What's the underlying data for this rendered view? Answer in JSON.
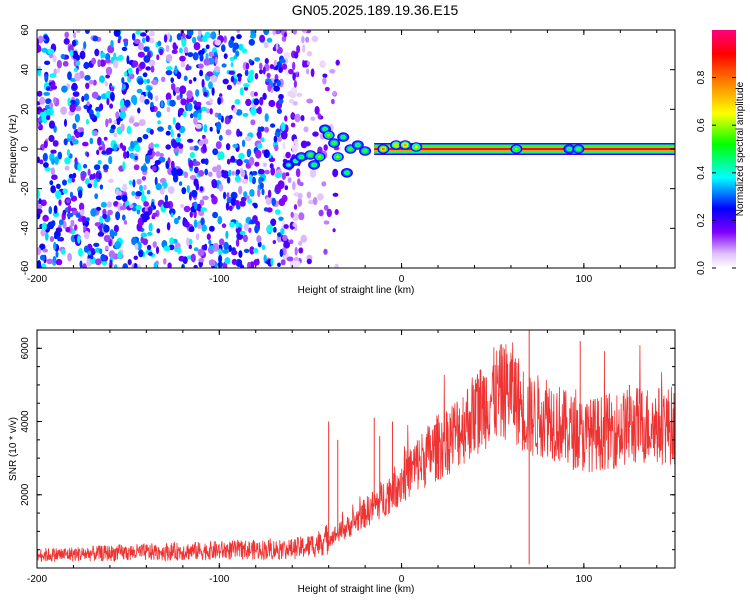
{
  "title": "GN05.2025.189.19.36.E15",
  "chart_data": [
    {
      "type": "heatmap",
      "xlabel": "Height of straight line (km)",
      "ylabel": "Frequency (Hz)",
      "xlim": [
        -200,
        150
      ],
      "ylim": [
        -60,
        60
      ],
      "xticks": [
        -200,
        -100,
        0,
        100
      ],
      "yticks": [
        -60,
        -40,
        -20,
        0,
        20,
        40,
        60
      ],
      "colorbar": {
        "label": "Normalized spectral amplitude",
        "range": [
          0.0,
          1.0
        ],
        "ticks": [
          "0.0",
          "0.2",
          "0.4",
          "0.6",
          "0.8"
        ],
        "colors": [
          "#ffffff",
          "#cc99ff",
          "#8000ff",
          "#0000ff",
          "#00ffff",
          "#00ff00",
          "#ffff00",
          "#ff8000",
          "#ff0000",
          "#ff0080"
        ]
      },
      "features": {
        "noise_region_x": [
          -200,
          -55
        ],
        "noise_amplitude": 0.35,
        "tone_x": [
          -15,
          150
        ],
        "tone_frequency": 0,
        "tone_amplitude": 0.95,
        "transition_blobs": [
          {
            "x": -62,
            "y": -8,
            "a": 0.4
          },
          {
            "x": -58,
            "y": -6,
            "a": 0.45
          },
          {
            "x": -55,
            "y": -4,
            "a": 0.5
          },
          {
            "x": -50,
            "y": -3,
            "a": 0.55
          },
          {
            "x": -48,
            "y": -8,
            "a": 0.5
          },
          {
            "x": -45,
            "y": -4,
            "a": 0.6
          },
          {
            "x": -42,
            "y": 10,
            "a": 0.5
          },
          {
            "x": -40,
            "y": 7,
            "a": 0.6
          },
          {
            "x": -37,
            "y": 3,
            "a": 0.55
          },
          {
            "x": -35,
            "y": -4,
            "a": 0.6
          },
          {
            "x": -32,
            "y": 6,
            "a": 0.5
          },
          {
            "x": -30,
            "y": -12,
            "a": 0.5
          },
          {
            "x": -28,
            "y": 0,
            "a": 0.55
          },
          {
            "x": -24,
            "y": 2,
            "a": 0.5
          },
          {
            "x": -20,
            "y": -1,
            "a": 0.55
          },
          {
            "x": -10,
            "y": 0,
            "a": 0.8
          },
          {
            "x": -3,
            "y": 2,
            "a": 0.7
          },
          {
            "x": 2,
            "y": 2,
            "a": 0.75
          },
          {
            "x": 8,
            "y": 1,
            "a": 0.65
          },
          {
            "x": 63,
            "y": 0,
            "a": 0.6
          },
          {
            "x": 92,
            "y": 0,
            "a": 0.5
          },
          {
            "x": 97,
            "y": 0,
            "a": 0.55
          }
        ]
      }
    },
    {
      "type": "line",
      "xlabel": "Height of straight line (km)",
      "ylabel": "SNR (10 * v/v)",
      "xlim": [
        -200,
        150
      ],
      "ylim": [
        0,
        6500
      ],
      "xticks": [
        -200,
        -100,
        0,
        100
      ],
      "yticks": [
        2000,
        4000,
        6000
      ],
      "series": [
        {
          "color": "#ee3333",
          "trend": {
            "x": [
              -200,
              -150,
              -100,
              -60,
              -50,
              -40,
              -30,
              -20,
              -10,
              0,
              10,
              20,
              30,
              40,
              50,
              60,
              70,
              80,
              90,
              100,
              110,
              120,
              130,
              140,
              150
            ],
            "y": [
              350,
              420,
              480,
              520,
              600,
              800,
              1100,
              1500,
              1900,
              2400,
              2900,
              3300,
              3700,
              4200,
              4700,
              4900,
              4100,
              4200,
              3800,
              3600,
              3700,
              3800,
              3900,
              3900,
              3900
            ]
          },
          "spikes": [
            {
              "x": -40,
              "y": 4000
            },
            {
              "x": -35,
              "y": 3500
            },
            {
              "x": -15,
              "y": 4100
            },
            {
              "x": -12,
              "y": 3600
            },
            {
              "x": -5,
              "y": 4000
            },
            {
              "x": 55,
              "y": 5800
            },
            {
              "x": 70,
              "y": 6500
            },
            {
              "x": 70,
              "y": 100
            },
            {
              "x": 98,
              "y": 6200
            },
            {
              "x": 125,
              "y": 5000
            }
          ]
        }
      ]
    }
  ]
}
